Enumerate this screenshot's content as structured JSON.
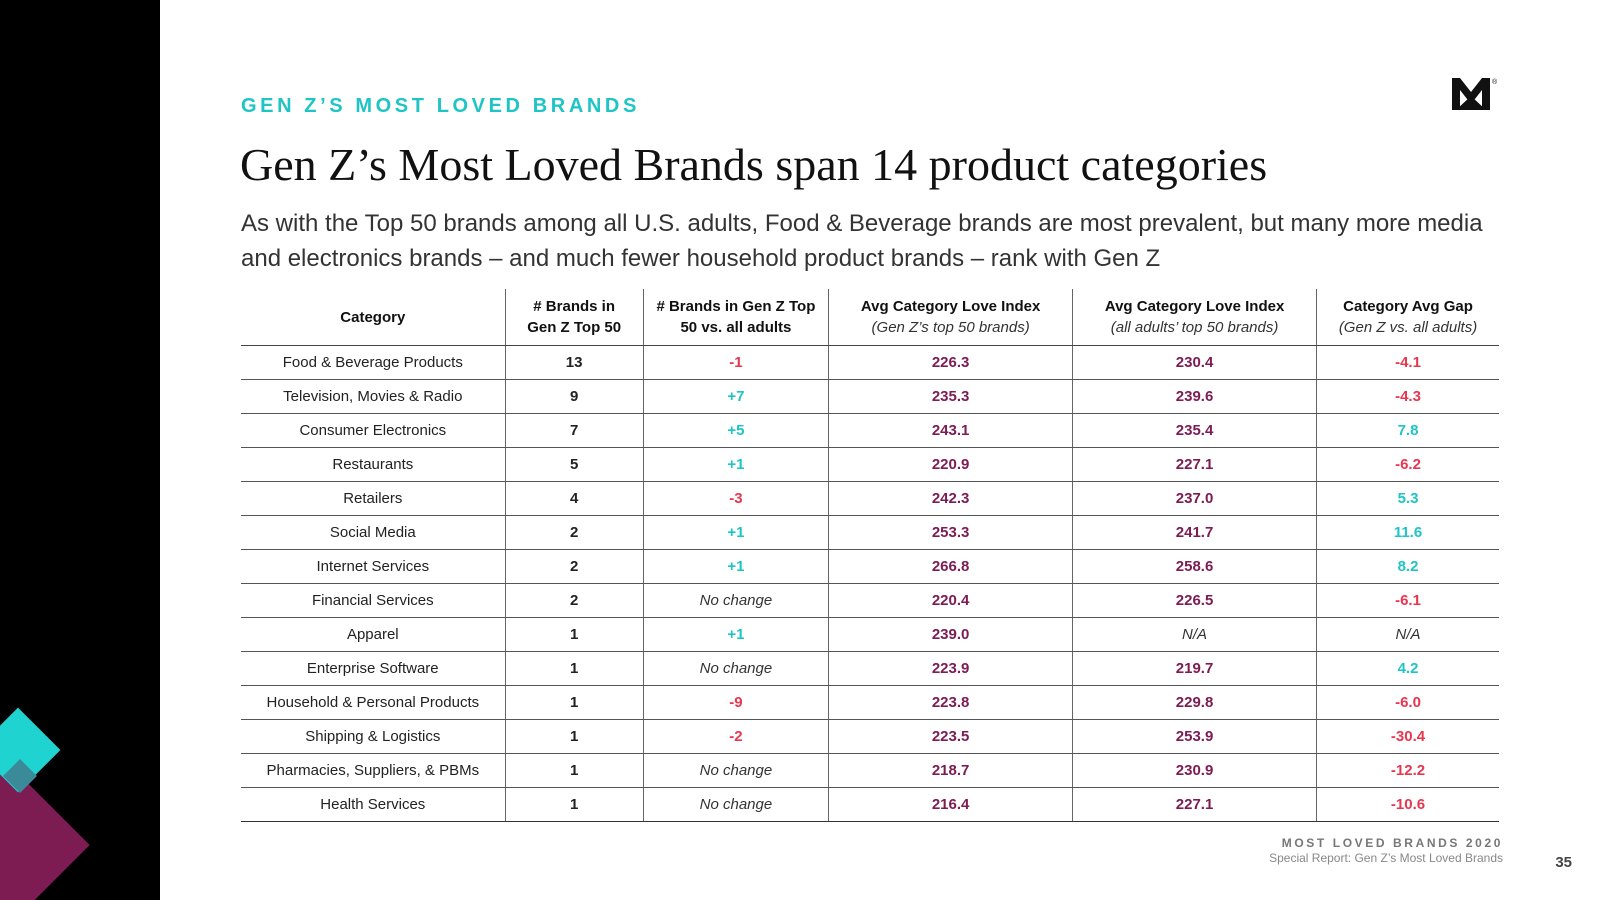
{
  "header": {
    "eyebrow": "GEN Z’S MOST LOVED BRANDS",
    "title": "Gen Z’s Most Loved Brands span 14 product categories",
    "subtitle": "As with the Top 50 brands among all U.S. adults, Food & Beverage brands are most prevalent, but many more media and electronics brands – and much fewer household product brands – rank with Gen Z"
  },
  "table": {
    "headers": {
      "category": "Category",
      "brands_line1": "# Brands in",
      "brands_line2": "Gen Z Top 50",
      "change_line1": "# Brands in Gen Z Top",
      "change_line2": "50 vs. all adults",
      "genz_index": "Avg Category Love Index",
      "genz_index_sub": "(Gen Z’s top 50 brands)",
      "adults_index": "Avg Category Love Index",
      "adults_index_sub": "(all adults’ top 50 brands)",
      "gap": "Category Avg Gap",
      "gap_sub": "(Gen Z vs. all adults)"
    },
    "rows": [
      {
        "category": "Food & Beverage Products",
        "brands": "13",
        "change": "-1",
        "genz": "226.3",
        "adults": "230.4",
        "gap": "-4.1"
      },
      {
        "category": "Television, Movies & Radio",
        "brands": "9",
        "change": "+7",
        "genz": "235.3",
        "adults": "239.6",
        "gap": "-4.3"
      },
      {
        "category": "Consumer Electronics",
        "brands": "7",
        "change": "+5",
        "genz": "243.1",
        "adults": "235.4",
        "gap": "7.8"
      },
      {
        "category": "Restaurants",
        "brands": "5",
        "change": "+1",
        "genz": "220.9",
        "adults": "227.1",
        "gap": "-6.2"
      },
      {
        "category": "Retailers",
        "brands": "4",
        "change": "-3",
        "genz": "242.3",
        "adults": "237.0",
        "gap": "5.3"
      },
      {
        "category": "Social Media",
        "brands": "2",
        "change": "+1",
        "genz": "253.3",
        "adults": "241.7",
        "gap": "11.6"
      },
      {
        "category": "Internet Services",
        "brands": "2",
        "change": "+1",
        "genz": "266.8",
        "adults": "258.6",
        "gap": "8.2"
      },
      {
        "category": "Financial Services",
        "brands": "2",
        "change": "No change",
        "genz": "220.4",
        "adults": "226.5",
        "gap": "-6.1"
      },
      {
        "category": "Apparel",
        "brands": "1",
        "change": "+1",
        "genz": "239.0",
        "adults": "N/A",
        "gap": "N/A"
      },
      {
        "category": "Enterprise Software",
        "brands": "1",
        "change": "No change",
        "genz": "223.9",
        "adults": "219.7",
        "gap": "4.2"
      },
      {
        "category": "Household & Personal Products",
        "brands": "1",
        "change": "-9",
        "genz": "223.8",
        "adults": "229.8",
        "gap": "-6.0"
      },
      {
        "category": "Shipping & Logistics",
        "brands": "1",
        "change": "-2",
        "genz": "223.5",
        "adults": "253.9",
        "gap": "-30.4"
      },
      {
        "category": "Pharmacies, Suppliers, & PBMs",
        "brands": "1",
        "change": "No change",
        "genz": "218.7",
        "adults": "230.9",
        "gap": "-12.2"
      },
      {
        "category": "Health Services",
        "brands": "1",
        "change": "No change",
        "genz": "216.4",
        "adults": "227.1",
        "gap": "-10.6"
      }
    ]
  },
  "footer": {
    "title": "MOST LOVED BRANDS 2020",
    "subtitle": "Special Report: Gen Z’s Most Loved Brands",
    "page": "35"
  },
  "logo": {
    "icon": "m-logo-icon",
    "mark": "®"
  },
  "colors": {
    "teal": "#1fc4c4",
    "plum": "#7d1b53",
    "red": "#e8364f",
    "black": "#000000"
  }
}
